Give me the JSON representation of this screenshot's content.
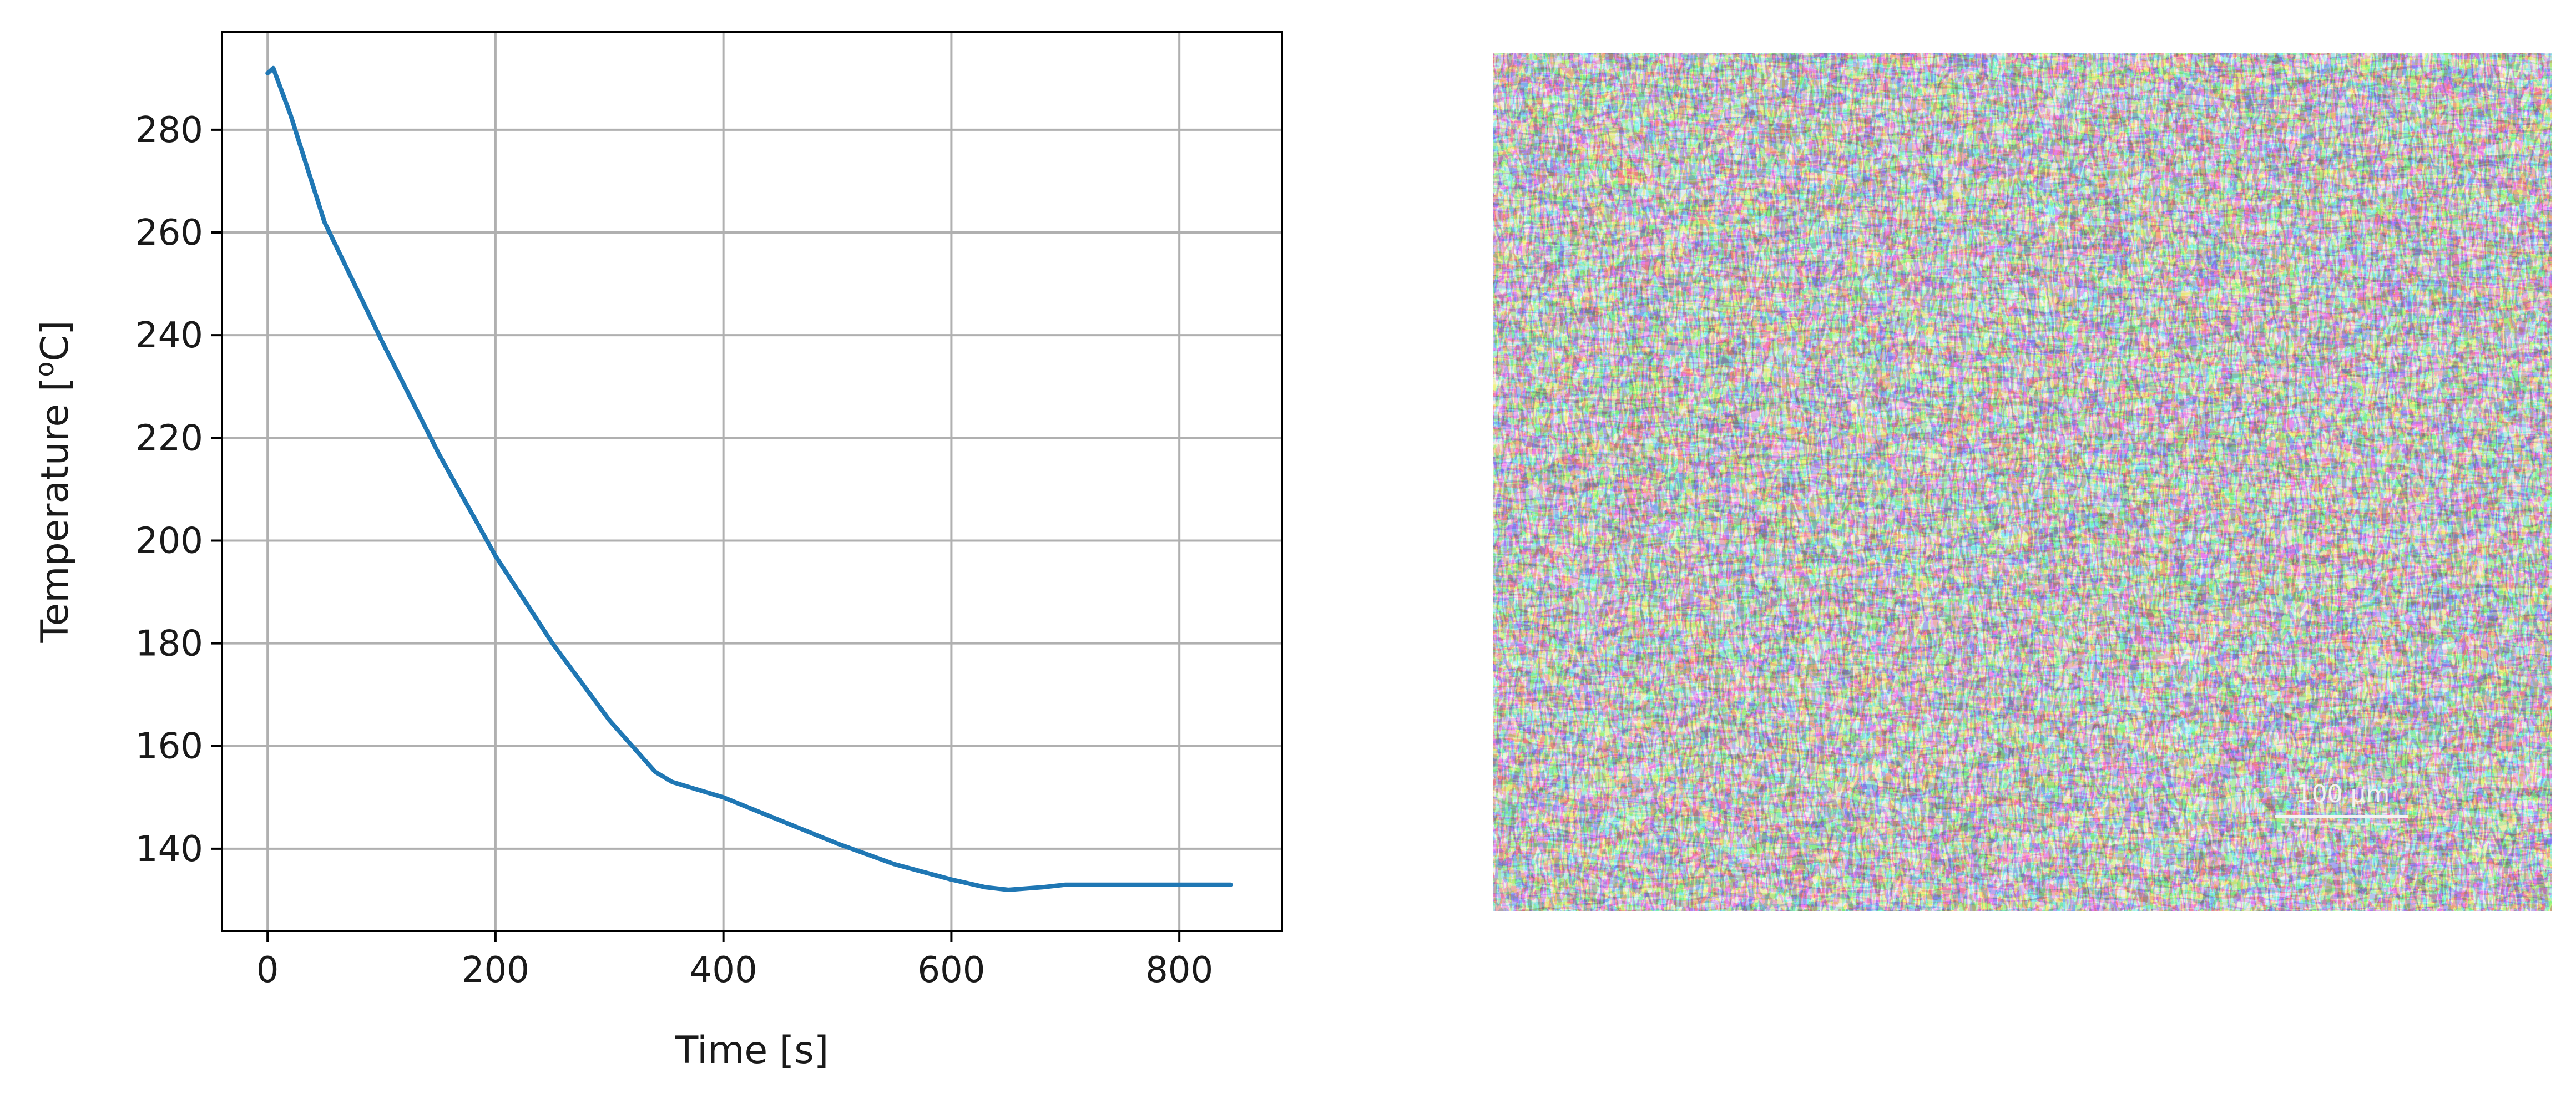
{
  "chart_data": [
    {
      "type": "line",
      "title": "",
      "xlabel": "Time   [s]",
      "ylabel": "Temperature   [",
      "ylabel_superscript": "o",
      "ylabel_suffix": "C]",
      "xlim": [
        -40,
        890
      ],
      "ylim": [
        124,
        299
      ],
      "grid": true,
      "x_ticks": [
        0,
        200,
        400,
        600,
        800
      ],
      "y_ticks": [
        140,
        160,
        180,
        200,
        220,
        240,
        260,
        280
      ],
      "line_color": "#1f77b4",
      "series": [
        {
          "x": [
            0,
            5,
            20,
            50,
            100,
            150,
            200,
            250,
            300,
            340,
            355,
            370,
            400,
            450,
            500,
            550,
            600,
            630,
            650,
            680,
            700,
            750,
            800,
            845
          ],
          "y": [
            291,
            292,
            283,
            262,
            239,
            217,
            197,
            180,
            165,
            155,
            153,
            152,
            150,
            145.5,
            141,
            137,
            134,
            132.5,
            132,
            132.5,
            133,
            133,
            133,
            133
          ]
        }
      ]
    }
  ],
  "micrograph": {
    "scale_bar_label": "100 μm"
  }
}
